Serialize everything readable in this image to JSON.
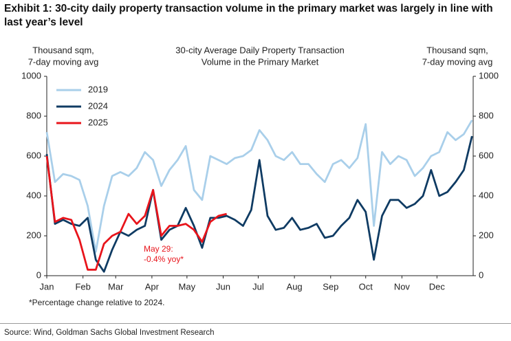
{
  "header": {
    "title": "Exhibit 1: 30-city daily property transaction volume in the primary market was largely in line with last year’s level"
  },
  "chart_data": {
    "type": "line",
    "title": [
      "30-city Average Daily Property Transaction",
      "Volume in the Primary Market"
    ],
    "y_label": [
      "Thousand sqm,",
      "7-day moving avg"
    ],
    "y2_label": [
      "Thousand sqm,",
      "7-day moving avg"
    ],
    "x": [
      0,
      7,
      14,
      21,
      28,
      35,
      42,
      49,
      56,
      63,
      70,
      77,
      84,
      91,
      98,
      105,
      112,
      119,
      126,
      133,
      140,
      147,
      154,
      161,
      168,
      175,
      182,
      189,
      196,
      203,
      210,
      217,
      224,
      231,
      238,
      245,
      252,
      259,
      266,
      273,
      280,
      287,
      294,
      301,
      308,
      315,
      322,
      329,
      336,
      343,
      350,
      357,
      364
    ],
    "xlim": [
      0,
      365
    ],
    "xticks": [
      {
        "value": 0,
        "label": "Jan"
      },
      {
        "value": 31,
        "label": "Feb"
      },
      {
        "value": 59,
        "label": "Mar"
      },
      {
        "value": 90,
        "label": "Apr"
      },
      {
        "value": 120,
        "label": "May"
      },
      {
        "value": 151,
        "label": "Jun"
      },
      {
        "value": 181,
        "label": "Jul"
      },
      {
        "value": 212,
        "label": "Aug"
      },
      {
        "value": 243,
        "label": "Sep"
      },
      {
        "value": 273,
        "label": "Oct"
      },
      {
        "value": 304,
        "label": "Nov"
      },
      {
        "value": 334,
        "label": "Dec"
      }
    ],
    "ylim": [
      0,
      1000
    ],
    "yticks": [
      0,
      200,
      400,
      600,
      800,
      1000
    ],
    "y2lim": [
      0,
      1000
    ],
    "y2ticks": [
      0,
      200,
      400,
      600,
      800,
      1000
    ],
    "series": [
      {
        "name": "2019",
        "color": "#a9cfea",
        "values": [
          720,
          470,
          510,
          500,
          480,
          350,
          120,
          350,
          500,
          520,
          500,
          540,
          620,
          580,
          450,
          530,
          580,
          650,
          430,
          380,
          600,
          580,
          560,
          590,
          600,
          630,
          730,
          680,
          600,
          580,
          620,
          560,
          560,
          510,
          470,
          560,
          580,
          540,
          590,
          760,
          250,
          620,
          560,
          600,
          580,
          500,
          540,
          600,
          620,
          720,
          680,
          710,
          780
        ]
      },
      {
        "name": "2024",
        "color": "#0f3b63",
        "values": [
          610,
          260,
          280,
          260,
          250,
          290,
          80,
          20,
          130,
          220,
          200,
          230,
          250,
          430,
          180,
          230,
          250,
          340,
          250,
          140,
          290,
          290,
          300,
          280,
          250,
          330,
          580,
          300,
          230,
          240,
          290,
          230,
          240,
          260,
          190,
          200,
          250,
          290,
          380,
          320,
          80,
          300,
          380,
          380,
          340,
          360,
          400,
          530,
          400,
          420,
          470,
          530,
          700
        ]
      },
      {
        "name": "2025",
        "color": "#e8141b",
        "values": [
          600,
          270,
          290,
          280,
          180,
          30,
          30,
          160,
          200,
          220,
          310,
          260,
          300,
          430,
          200,
          250,
          250,
          260,
          230,
          170,
          270,
          300,
          310,
          null,
          null,
          null,
          null,
          null,
          null,
          null,
          null,
          null,
          null,
          null,
          null,
          null,
          null,
          null,
          null,
          null,
          null,
          null,
          null,
          null,
          null,
          null,
          null,
          null,
          null,
          null,
          null,
          null,
          null
        ]
      }
    ],
    "legend": "upper left",
    "annotation": [
      "May 29:",
      "-0.4% yoy*"
    ],
    "footnote": "*Percentage change relative to 2024."
  },
  "footer": {
    "source": "Source: Wind, Goldman Sachs Global Investment Research"
  }
}
